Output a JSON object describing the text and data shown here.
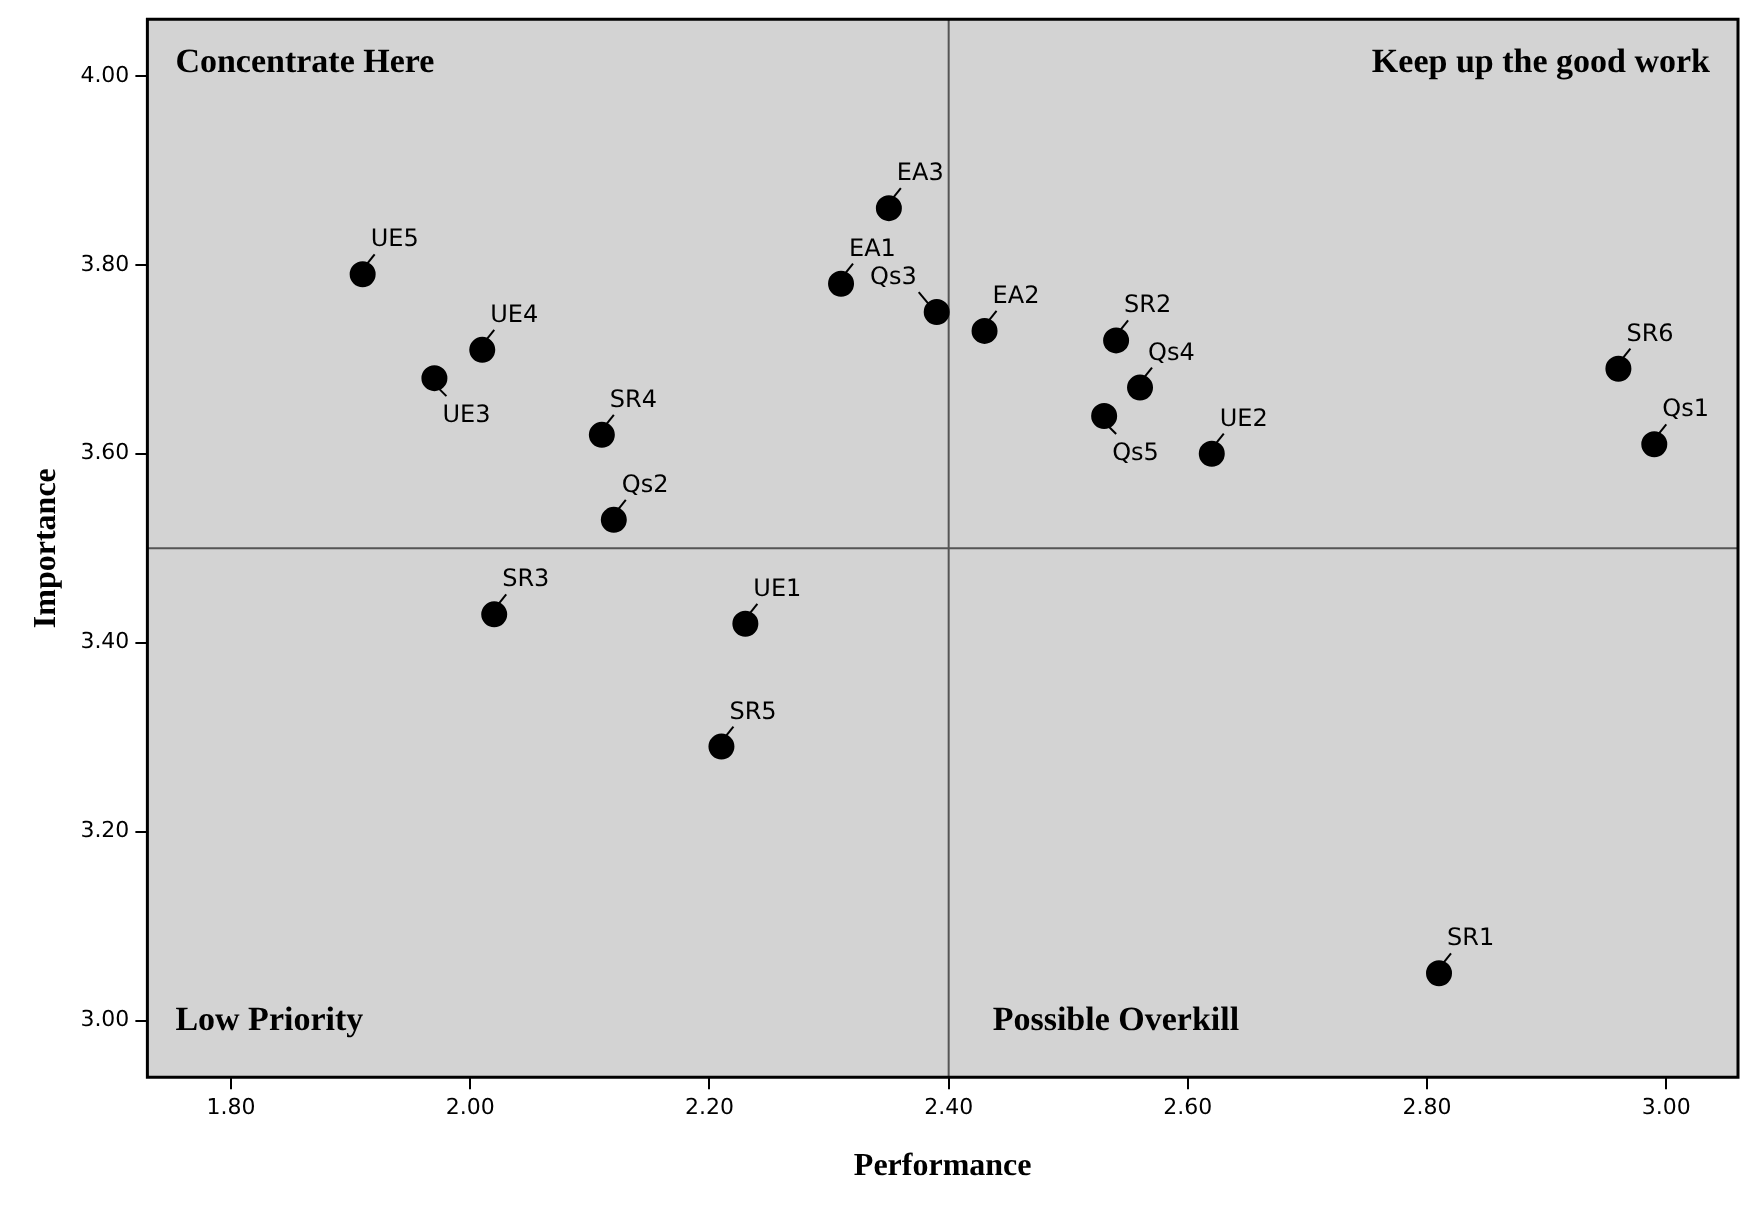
{
  "chart_data": {
    "type": "scatter",
    "xlabel": "Performance",
    "ylabel": "Importance",
    "x": [
      1.91,
      2.01,
      1.97,
      2.11,
      2.12,
      2.02,
      2.23,
      2.21,
      2.35,
      2.31,
      2.39,
      2.43,
      2.54,
      2.56,
      2.53,
      2.62,
      2.96,
      2.99,
      2.81
    ],
    "values": [
      3.79,
      3.71,
      3.68,
      3.62,
      3.53,
      3.43,
      3.42,
      3.29,
      3.86,
      3.78,
      3.75,
      3.73,
      3.72,
      3.67,
      3.64,
      3.6,
      3.69,
      3.61,
      3.05
    ],
    "value_labels": [
      "UE5",
      "UE4",
      "UE3",
      "SR4",
      "Qs2",
      "SR3",
      "UE1",
      "SR5",
      "EA3",
      "EA1",
      "Qs3",
      "EA2",
      "SR2",
      "Qs4",
      "Qs5",
      "UE2",
      "SR6",
      "Qs1",
      "SR1"
    ],
    "color": "#000000",
    "marker": "circle",
    "xlim": [
      1.73,
      3.06
    ],
    "xticks": [
      {
        "value": 1.8,
        "label": "1.80"
      },
      {
        "value": 2.0,
        "label": "2.00"
      },
      {
        "value": 2.2,
        "label": "2.20"
      },
      {
        "value": 2.4,
        "label": "2.40"
      },
      {
        "value": 2.6,
        "label": "2.60"
      },
      {
        "value": 2.8,
        "label": "2.80"
      },
      {
        "value": 3.0,
        "label": "3.00"
      }
    ],
    "ylim": [
      2.94,
      4.06
    ],
    "yticks": [
      {
        "value": 3.0,
        "label": "3.00"
      },
      {
        "value": 3.2,
        "label": "3.20"
      },
      {
        "value": 3.4,
        "label": "3.40"
      },
      {
        "value": 3.6,
        "label": "3.60"
      },
      {
        "value": 3.8,
        "label": "3.80"
      },
      {
        "value": 4.0,
        "label": "4.00"
      }
    ],
    "ref_lines": [
      {
        "axis": "x",
        "value": 2.4,
        "color": "#555555"
      },
      {
        "axis": "y",
        "value": 3.5,
        "color": "#555555"
      }
    ],
    "annotations": [
      "Concentrate Here",
      "Keep up the good work",
      "Low Priority",
      "Possible Overkill"
    ],
    "grid": false,
    "legend": false
  }
}
